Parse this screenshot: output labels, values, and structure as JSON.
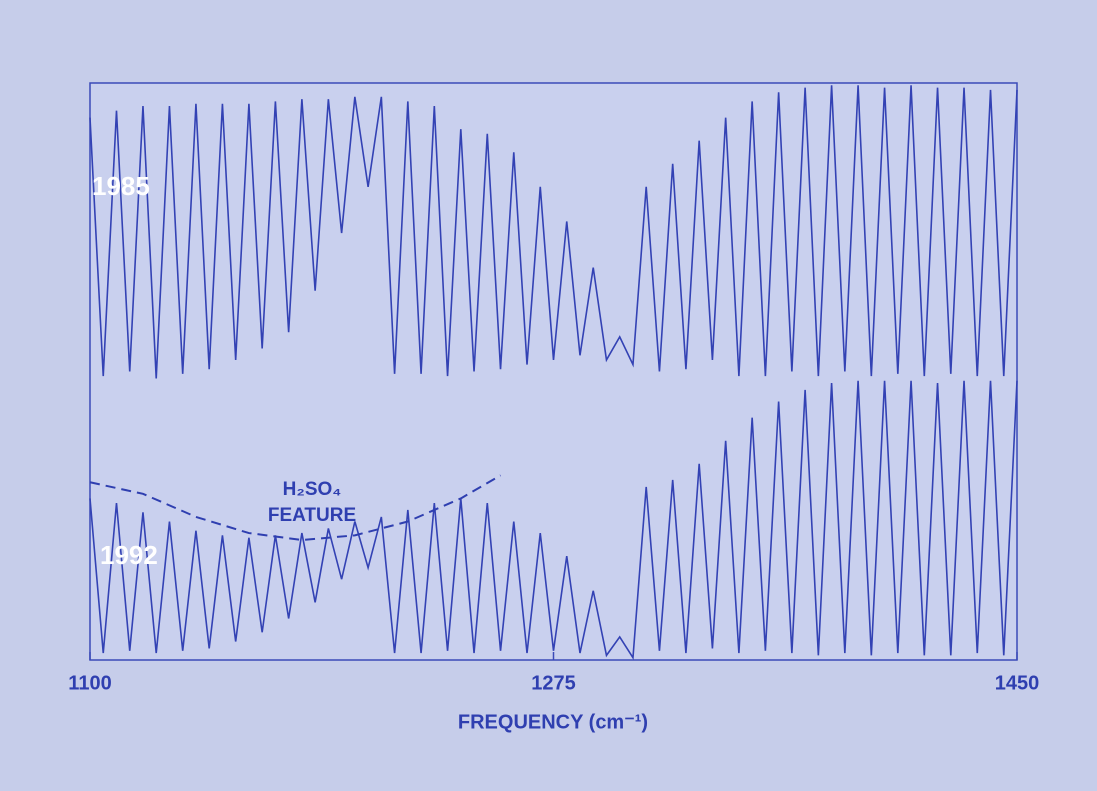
{
  "chart_data": {
    "type": "line",
    "x": [
      1100,
      1105,
      1110,
      1115,
      1120,
      1125,
      1130,
      1135,
      1140,
      1145,
      1150,
      1155,
      1160,
      1165,
      1170,
      1175,
      1180,
      1185,
      1190,
      1195,
      1200,
      1205,
      1210,
      1215,
      1220,
      1225,
      1230,
      1235,
      1240,
      1245,
      1250,
      1255,
      1260,
      1265,
      1270,
      1275,
      1280,
      1285,
      1290,
      1295,
      1300,
      1305,
      1310,
      1315,
      1320,
      1325,
      1330,
      1335,
      1340,
      1345,
      1350,
      1355,
      1360,
      1365,
      1370,
      1375,
      1380,
      1385,
      1390,
      1395,
      1400,
      1405,
      1410,
      1415,
      1420,
      1425,
      1430,
      1435,
      1440,
      1445,
      1450
    ],
    "series": [
      {
        "name": "1985",
        "color": "#3342b4",
        "values": [
          2.35,
          1.23,
          2.38,
          1.25,
          2.4,
          1.22,
          2.4,
          1.24,
          2.41,
          1.26,
          2.41,
          1.3,
          2.41,
          1.35,
          2.42,
          1.42,
          2.43,
          1.6,
          2.43,
          1.85,
          2.44,
          2.05,
          2.44,
          1.24,
          2.42,
          1.24,
          2.4,
          1.23,
          2.3,
          1.25,
          2.28,
          1.26,
          2.2,
          1.28,
          2.05,
          1.3,
          1.9,
          1.32,
          1.7,
          1.3,
          1.4,
          1.28,
          2.05,
          1.25,
          2.15,
          1.26,
          2.25,
          1.3,
          2.35,
          1.23,
          2.42,
          1.23,
          2.46,
          1.25,
          2.48,
          1.23,
          2.49,
          1.25,
          2.49,
          1.23,
          2.48,
          1.24,
          2.49,
          1.23,
          2.48,
          1.24,
          2.48,
          1.23,
          2.47,
          1.23,
          2.47
        ]
      },
      {
        "name": "1992",
        "color": "#3342b4",
        "values": [
          0.7,
          0.03,
          0.68,
          0.04,
          0.64,
          0.03,
          0.6,
          0.04,
          0.56,
          0.05,
          0.54,
          0.08,
          0.53,
          0.12,
          0.54,
          0.18,
          0.55,
          0.25,
          0.57,
          0.35,
          0.6,
          0.4,
          0.62,
          0.03,
          0.65,
          0.03,
          0.68,
          0.04,
          0.7,
          0.03,
          0.68,
          0.04,
          0.6,
          0.03,
          0.55,
          0.04,
          0.45,
          0.03,
          0.3,
          0.02,
          0.1,
          0.01,
          0.75,
          0.04,
          0.78,
          0.03,
          0.85,
          0.05,
          0.95,
          0.03,
          1.05,
          0.04,
          1.12,
          0.03,
          1.17,
          0.02,
          1.2,
          0.03,
          1.21,
          0.02,
          1.21,
          0.03,
          1.21,
          0.02,
          1.2,
          0.02,
          1.21,
          0.03,
          1.21,
          0.02,
          1.21
        ]
      }
    ],
    "dashed_curve": {
      "x": [
        1100,
        1120,
        1140,
        1160,
        1180,
        1200,
        1220,
        1240,
        1255
      ],
      "values": [
        0.77,
        0.72,
        0.62,
        0.55,
        0.52,
        0.54,
        0.6,
        0.7,
        0.8
      ]
    },
    "annotation": [
      "H₂SO₄",
      "FEATURE"
    ],
    "xlabel": "FREQUENCY (cm⁻¹)",
    "xlim": [
      1100,
      1450
    ],
    "xticks": [
      1100,
      1275,
      1450
    ],
    "ylim": [
      0,
      2.5
    ]
  }
}
